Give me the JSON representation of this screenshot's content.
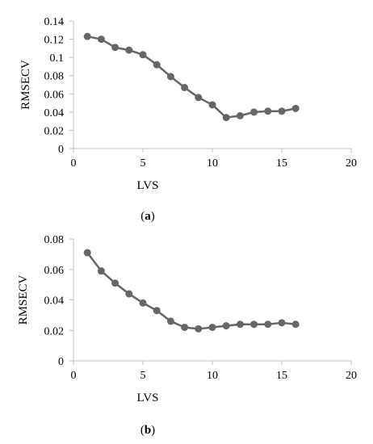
{
  "chart_data": [
    {
      "type": "line",
      "panel_label": "(a)",
      "xlabel": "LVS",
      "ylabel": "RMSECV",
      "xlim": [
        0,
        20
      ],
      "ylim": [
        0,
        0.14
      ],
      "xticks": [
        0,
        5,
        10,
        15,
        20
      ],
      "xtick_labels": [
        "0",
        "5",
        "10",
        "15",
        "20"
      ],
      "yticks": [
        0,
        0.02,
        0.04,
        0.06,
        0.08,
        0.1,
        0.12,
        0.14
      ],
      "ytick_labels": [
        "0",
        "0.02",
        "0.04",
        "0.06",
        "0.08",
        "0.1",
        "0.12",
        "0.14"
      ],
      "grid": false,
      "legend": false,
      "colors": {
        "series": "#666666",
        "axis": "#bfbfbf"
      },
      "series": [
        {
          "x": [
            1,
            2,
            3,
            4,
            5,
            6,
            7,
            8,
            9,
            10,
            11,
            12,
            13,
            14,
            15,
            16
          ],
          "y": [
            0.123,
            0.12,
            0.111,
            0.108,
            0.103,
            0.092,
            0.079,
            0.067,
            0.056,
            0.048,
            0.034,
            0.036,
            0.04,
            0.041,
            0.041,
            0.044
          ]
        }
      ]
    },
    {
      "type": "line",
      "panel_label": "(b)",
      "xlabel": "LVS",
      "ylabel": "RMSECV",
      "xlim": [
        0,
        20
      ],
      "ylim": [
        0,
        0.08
      ],
      "xticks": [
        0,
        5,
        10,
        15,
        20
      ],
      "xtick_labels": [
        "0",
        "5",
        "10",
        "15",
        "20"
      ],
      "yticks": [
        0,
        0.02,
        0.04,
        0.06,
        0.08
      ],
      "ytick_labels": [
        "0",
        "0.02",
        "0.04",
        "0.06",
        "0.08"
      ],
      "grid": false,
      "legend": false,
      "colors": {
        "series": "#666666",
        "axis": "#bfbfbf"
      },
      "series": [
        {
          "x": [
            1,
            2,
            3,
            4,
            5,
            6,
            7,
            8,
            9,
            10,
            11,
            12,
            13,
            14,
            15,
            16
          ],
          "y": [
            0.071,
            0.059,
            0.051,
            0.044,
            0.038,
            0.033,
            0.026,
            0.022,
            0.021,
            0.022,
            0.023,
            0.024,
            0.024,
            0.024,
            0.025,
            0.024
          ]
        }
      ]
    }
  ]
}
